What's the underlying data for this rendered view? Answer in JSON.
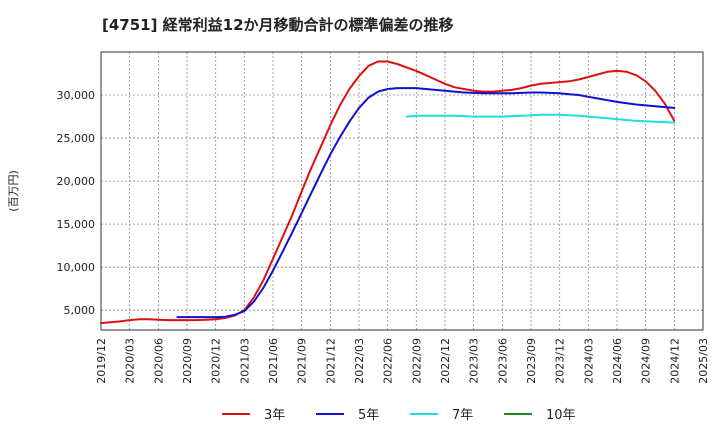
{
  "chart_data": {
    "type": "line",
    "title": "[4751]  経常利益12か月移動合計の標準偏差の推移",
    "ylabel": "(百万円)",
    "xlabel": "",
    "ylim": [
      2700,
      35000
    ],
    "x_start": "2019/12",
    "x_end": "2025/03",
    "categories": [
      "2019/12",
      "2020/03",
      "2020/06",
      "2020/09",
      "2020/12",
      "2021/03",
      "2021/06",
      "2021/09",
      "2021/12",
      "2022/03",
      "2022/06",
      "2022/09",
      "2022/12",
      "2023/03",
      "2023/06",
      "2023/09",
      "2023/12",
      "2024/03",
      "2024/06",
      "2024/09",
      "2024/12",
      "2025/03"
    ],
    "yticks": [
      5000,
      10000,
      15000,
      20000,
      25000,
      30000
    ],
    "ytick_labels": [
      "5,000",
      "10,000",
      "15,000",
      "20,000",
      "25,000",
      "30,000"
    ],
    "grid": true,
    "legend_position": "bottom",
    "series": [
      {
        "name": "3年",
        "color": "#dd1111",
        "points": [
          [
            "2019/12",
            3500
          ],
          [
            "2020/01",
            3600
          ],
          [
            "2020/02",
            3700
          ],
          [
            "2020/03",
            3850
          ],
          [
            "2020/04",
            3950
          ],
          [
            "2020/05",
            3950
          ],
          [
            "2020/06",
            3900
          ],
          [
            "2020/07",
            3850
          ],
          [
            "2020/08",
            3850
          ],
          [
            "2020/09",
            3850
          ],
          [
            "2020/10",
            3850
          ],
          [
            "2020/11",
            3900
          ],
          [
            "2020/12",
            3950
          ],
          [
            "2021/01",
            4100
          ],
          [
            "2021/02",
            4400
          ],
          [
            "2021/03",
            5000
          ],
          [
            "2021/04",
            6500
          ],
          [
            "2021/05",
            8500
          ],
          [
            "2021/06",
            11000
          ],
          [
            "2021/07",
            13500
          ],
          [
            "2021/08",
            16000
          ],
          [
            "2021/09",
            18800
          ],
          [
            "2021/10",
            21500
          ],
          [
            "2021/11",
            24000
          ],
          [
            "2021/12",
            26500
          ],
          [
            "2022/01",
            28800
          ],
          [
            "2022/02",
            30700
          ],
          [
            "2022/03",
            32200
          ],
          [
            "2022/04",
            33400
          ],
          [
            "2022/05",
            33900
          ],
          [
            "2022/06",
            33900
          ],
          [
            "2022/07",
            33600
          ],
          [
            "2022/08",
            33200
          ],
          [
            "2022/09",
            32800
          ],
          [
            "2022/10",
            32300
          ],
          [
            "2022/11",
            31800
          ],
          [
            "2022/12",
            31300
          ],
          [
            "2023/01",
            30900
          ],
          [
            "2023/02",
            30700
          ],
          [
            "2023/03",
            30500
          ],
          [
            "2023/04",
            30400
          ],
          [
            "2023/05",
            30400
          ],
          [
            "2023/06",
            30500
          ],
          [
            "2023/07",
            30600
          ],
          [
            "2023/08",
            30800
          ],
          [
            "2023/09",
            31100
          ],
          [
            "2023/10",
            31300
          ],
          [
            "2023/11",
            31400
          ],
          [
            "2023/12",
            31500
          ],
          [
            "2024/01",
            31600
          ],
          [
            "2024/02",
            31800
          ],
          [
            "2024/03",
            32100
          ],
          [
            "2024/04",
            32400
          ],
          [
            "2024/05",
            32700
          ],
          [
            "2024/06",
            32800
          ],
          [
            "2024/07",
            32700
          ],
          [
            "2024/08",
            32300
          ],
          [
            "2024/09",
            31600
          ],
          [
            "2024/10",
            30500
          ],
          [
            "2024/11",
            29000
          ],
          [
            "2024/12",
            27000
          ]
        ]
      },
      {
        "name": "5年",
        "color": "#1111cc",
        "points": [
          [
            "2020/08",
            4200
          ],
          [
            "2020/09",
            4200
          ],
          [
            "2020/10",
            4200
          ],
          [
            "2020/11",
            4200
          ],
          [
            "2020/12",
            4200
          ],
          [
            "2021/01",
            4250
          ],
          [
            "2021/02",
            4450
          ],
          [
            "2021/03",
            4900
          ],
          [
            "2021/04",
            6000
          ],
          [
            "2021/05",
            7600
          ],
          [
            "2021/06",
            9600
          ],
          [
            "2021/07",
            11800
          ],
          [
            "2021/08",
            14000
          ],
          [
            "2021/09",
            16300
          ],
          [
            "2021/10",
            18600
          ],
          [
            "2021/11",
            20900
          ],
          [
            "2021/12",
            23100
          ],
          [
            "2022/01",
            25100
          ],
          [
            "2022/02",
            26900
          ],
          [
            "2022/03",
            28500
          ],
          [
            "2022/04",
            29700
          ],
          [
            "2022/05",
            30400
          ],
          [
            "2022/06",
            30700
          ],
          [
            "2022/07",
            30800
          ],
          [
            "2022/08",
            30800
          ],
          [
            "2022/09",
            30800
          ],
          [
            "2022/10",
            30700
          ],
          [
            "2022/11",
            30600
          ],
          [
            "2022/12",
            30500
          ],
          [
            "2023/01",
            30400
          ],
          [
            "2023/02",
            30300
          ],
          [
            "2023/03",
            30250
          ],
          [
            "2023/04",
            30200
          ],
          [
            "2023/05",
            30200
          ],
          [
            "2023/06",
            30200
          ],
          [
            "2023/07",
            30200
          ],
          [
            "2023/08",
            30250
          ],
          [
            "2023/09",
            30300
          ],
          [
            "2023/10",
            30300
          ],
          [
            "2023/11",
            30250
          ],
          [
            "2023/12",
            30200
          ],
          [
            "2024/01",
            30100
          ],
          [
            "2024/02",
            30000
          ],
          [
            "2024/03",
            29800
          ],
          [
            "2024/04",
            29600
          ],
          [
            "2024/05",
            29400
          ],
          [
            "2024/06",
            29200
          ],
          [
            "2024/07",
            29050
          ],
          [
            "2024/08",
            28900
          ],
          [
            "2024/09",
            28800
          ],
          [
            "2024/10",
            28700
          ],
          [
            "2024/11",
            28600
          ],
          [
            "2024/12",
            28500
          ]
        ]
      },
      {
        "name": "7年",
        "color": "#22dddd",
        "points": [
          [
            "2022/08",
            27500
          ],
          [
            "2022/09",
            27600
          ],
          [
            "2022/10",
            27600
          ],
          [
            "2022/11",
            27600
          ],
          [
            "2022/12",
            27600
          ],
          [
            "2023/01",
            27600
          ],
          [
            "2023/02",
            27550
          ],
          [
            "2023/03",
            27500
          ],
          [
            "2023/04",
            27500
          ],
          [
            "2023/05",
            27500
          ],
          [
            "2023/06",
            27500
          ],
          [
            "2023/07",
            27550
          ],
          [
            "2023/08",
            27600
          ],
          [
            "2023/09",
            27650
          ],
          [
            "2023/10",
            27700
          ],
          [
            "2023/11",
            27700
          ],
          [
            "2023/12",
            27700
          ],
          [
            "2024/01",
            27650
          ],
          [
            "2024/02",
            27600
          ],
          [
            "2024/03",
            27500
          ],
          [
            "2024/04",
            27400
          ],
          [
            "2024/05",
            27300
          ],
          [
            "2024/06",
            27200
          ],
          [
            "2024/07",
            27100
          ],
          [
            "2024/08",
            27000
          ],
          [
            "2024/09",
            26950
          ],
          [
            "2024/10",
            26900
          ],
          [
            "2024/11",
            26850
          ],
          [
            "2024/12",
            26800
          ]
        ]
      },
      {
        "name": "10年",
        "color": "#228822",
        "points": []
      }
    ]
  }
}
